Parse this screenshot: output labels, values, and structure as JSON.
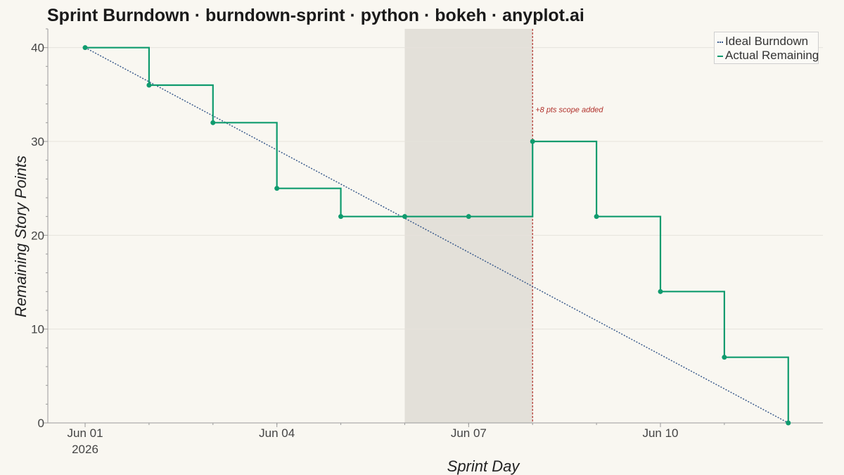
{
  "title": "Sprint Burndown · burndown-sprint · python · bokeh · anyplot.ai",
  "chart_data": {
    "type": "line",
    "xlabel": "Sprint Day",
    "ylabel": "Remaining Story Points",
    "x_start": "2026-06-01",
    "x_end": "2026-06-12",
    "xlim": [
      "2026-05-31T10:00",
      "2026-06-12T13:00"
    ],
    "ylim": [
      0,
      42
    ],
    "y_ticks": [
      0,
      10,
      20,
      30,
      40
    ],
    "x_ticks": [
      {
        "date": "2026-06-01",
        "label": "Jun 01",
        "sublabel": "2026"
      },
      {
        "date": "2026-06-04",
        "label": "Jun 04",
        "sublabel": ""
      },
      {
        "date": "2026-06-07",
        "label": "Jun 07",
        "sublabel": ""
      },
      {
        "date": "2026-06-10",
        "label": "Jun 10",
        "sublabel": ""
      }
    ],
    "grid": "horizontal",
    "legend_position": "top-right",
    "series": [
      {
        "name": "Ideal Burndown",
        "style": "dotted",
        "color": "#3b5b8c",
        "x": [
          "2026-06-01",
          "2026-06-12"
        ],
        "y": [
          40,
          0
        ]
      },
      {
        "name": "Actual Remaining",
        "style": "step",
        "color": "#0f9b6e",
        "x": [
          "2026-06-01",
          "2026-06-02",
          "2026-06-03",
          "2026-06-04",
          "2026-06-05",
          "2026-06-06",
          "2026-06-07",
          "2026-06-08",
          "2026-06-09",
          "2026-06-10",
          "2026-06-11",
          "2026-06-12"
        ],
        "y": [
          40,
          36,
          32,
          25,
          22,
          22,
          22,
          30,
          22,
          14,
          7,
          0
        ]
      }
    ],
    "shaded_region": {
      "x_start": "2026-06-06",
      "x_end": "2026-06-08",
      "color": "#e3e0d9"
    },
    "annotations": [
      {
        "type": "vline",
        "x": "2026-06-08",
        "color": "#b0302a",
        "text": "+8 pts scope added",
        "text_y": 33.4
      }
    ]
  }
}
